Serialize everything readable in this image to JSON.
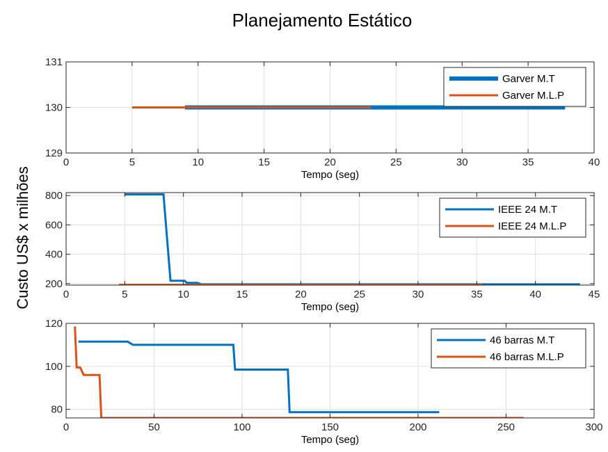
{
  "figure": {
    "title": "Planejamento Estático",
    "ylabel": "Custo US$ x milhões"
  },
  "colors": {
    "blue": "#0072BD",
    "orange": "#D95319"
  },
  "chart_data": [
    {
      "type": "line",
      "xlabel": "Tempo (seg)",
      "xlim": [
        0,
        40
      ],
      "ylim": [
        129,
        131
      ],
      "xticks": [
        0,
        5,
        10,
        15,
        20,
        25,
        30,
        35,
        40
      ],
      "yticks": [
        129,
        130,
        131
      ],
      "grid": true,
      "legend": "top-right",
      "series": [
        {
          "name": "Garver M.T",
          "color": "blue",
          "width": "thick",
          "x": [
            9,
            37.8
          ],
          "y": [
            130,
            130
          ]
        },
        {
          "name": "Garver M.L.P",
          "color": "orange",
          "width": "normal",
          "x": [
            5,
            23.1
          ],
          "y": [
            130,
            130
          ]
        }
      ]
    },
    {
      "type": "line",
      "xlabel": "Tempo (seg)",
      "xlim": [
        0,
        45
      ],
      "ylim": [
        190,
        820
      ],
      "xticks": [
        0,
        5,
        10,
        15,
        20,
        25,
        30,
        35,
        40,
        45
      ],
      "yticks": [
        200,
        400,
        600,
        800
      ],
      "grid": true,
      "legend": "top-right",
      "series": [
        {
          "name": "IEEE 24 M.T",
          "color": "blue",
          "width": "normal",
          "x": [
            5,
            8.3,
            8.9,
            10.1,
            10.3,
            11.2,
            11.5,
            43.8
          ],
          "y": [
            808,
            808,
            220,
            220,
            205,
            205,
            195,
            195
          ]
        },
        {
          "name": "IEEE 24 M.L.P",
          "color": "orange",
          "width": "normal",
          "x": [
            4.5,
            35.5
          ],
          "y": [
            192,
            192
          ]
        }
      ]
    },
    {
      "type": "line",
      "xlabel": "Tempo (seg)",
      "xlim": [
        0,
        300
      ],
      "ylim": [
        76,
        120
      ],
      "xticks": [
        0,
        50,
        100,
        150,
        200,
        250,
        300
      ],
      "yticks": [
        80,
        100,
        120
      ],
      "grid": true,
      "legend": "top-right",
      "series": [
        {
          "name": "46 barras M.T",
          "color": "blue",
          "width": "normal",
          "x": [
            7,
            35,
            38,
            95,
            96,
            126,
            127,
            212
          ],
          "y": [
            111.5,
            111.5,
            110,
            110,
            98.5,
            98.5,
            78.7,
            78.7
          ]
        },
        {
          "name": "46 barras M.L.P",
          "color": "orange",
          "width": "normal",
          "x": [
            5,
            6,
            8,
            10,
            12,
            18,
            19,
            20,
            260
          ],
          "y": [
            118.5,
            99.5,
            99.5,
            96,
            96,
            96,
            96,
            76,
            76
          ]
        }
      ]
    }
  ]
}
